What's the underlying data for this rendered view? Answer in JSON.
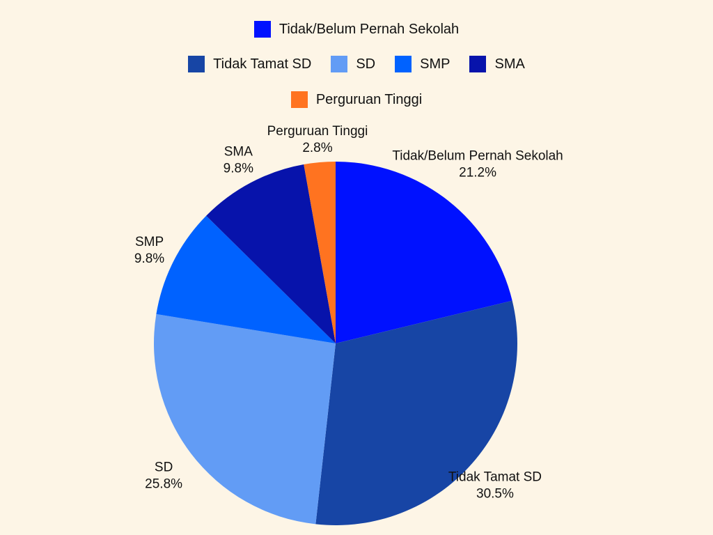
{
  "chart_data": {
    "type": "pie",
    "categories": [
      "Tidak/Belum Pernah Sekolah",
      "Tidak Tamat SD",
      "SD",
      "SMP",
      "SMA",
      "Perguruan Tinggi"
    ],
    "values": [
      21.2,
      30.5,
      25.8,
      9.8,
      9.8,
      2.8
    ],
    "value_labels": [
      "21.2%",
      "30.5%",
      "25.8%",
      "9.8%",
      "9.8%",
      "2.8%"
    ],
    "colors": [
      "#0011ff",
      "#1745a5",
      "#629cf5",
      "#0062ff",
      "#0713ab",
      "#ff7320"
    ],
    "legend_placement": "top",
    "legend_rows": [
      [
        0
      ],
      [
        1,
        2,
        3,
        4
      ],
      [
        5
      ]
    ]
  }
}
